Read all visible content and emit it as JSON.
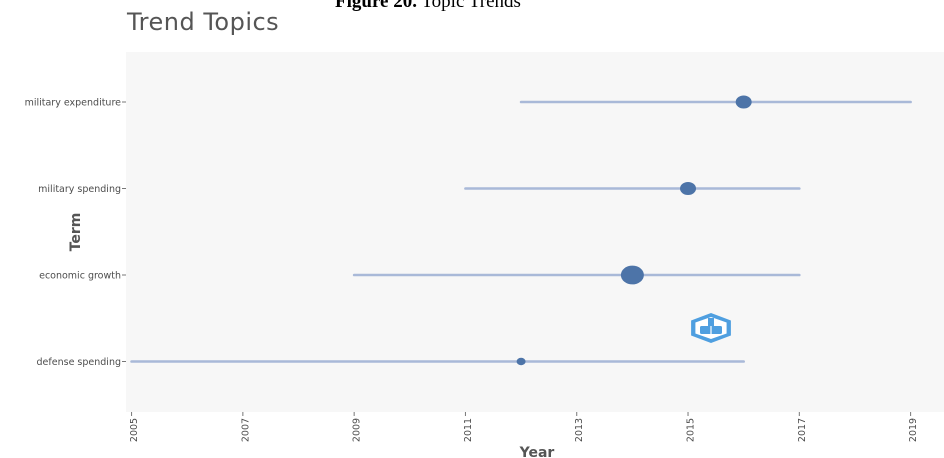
{
  "figure_caption": {
    "label": "Figure 20.",
    "text": "Topic Trends"
  },
  "chart_data": {
    "type": "scatter",
    "title": "Trend Topics",
    "xlabel": "Year",
    "ylabel": "Term",
    "xlim": [
      2004.9,
      2019.6
    ],
    "x_ticks": [
      2005,
      2007,
      2009,
      2011,
      2013,
      2015,
      2017,
      2019
    ],
    "terms": [
      {
        "term": "military expenditure",
        "year_q1": 2012,
        "year_median": 2016,
        "year_q3": 2019,
        "point_size": "medium"
      },
      {
        "term": "military spending",
        "year_q1": 2011,
        "year_median": 2015,
        "year_q3": 2017,
        "point_size": "medium"
      },
      {
        "term": "economic growth",
        "year_q1": 2009,
        "year_median": 2014,
        "year_q3": 2017,
        "point_size": "large"
      },
      {
        "term": "defense spending",
        "year_q1": 2005,
        "year_median": 2012,
        "year_q3": 2016,
        "point_size": "small"
      }
    ],
    "legend": "none",
    "grid": false,
    "colors": {
      "panel_background": "#f7f7f7",
      "segment": "#a9b9d8",
      "point": "#4d74a8",
      "logo_blue": "#4f9fe0"
    },
    "logo_icon": "bibliometrix-logo-icon"
  }
}
